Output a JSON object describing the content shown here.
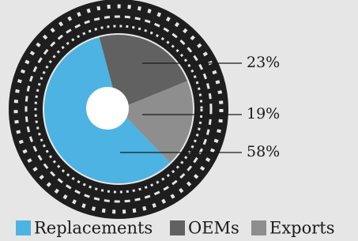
{
  "chart_data": {
    "type": "pie",
    "categories": [
      "Replacements",
      "OEMs",
      "Exports"
    ],
    "values": [
      58,
      23,
      19
    ],
    "value_labels": [
      "58%",
      "23%",
      "19%"
    ],
    "colors": [
      "#4db3e2",
      "#616161",
      "#8e8e8e"
    ]
  }
}
